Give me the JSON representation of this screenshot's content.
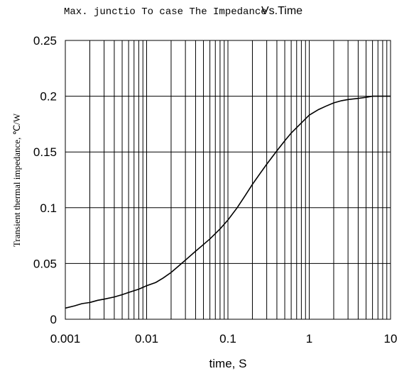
{
  "chart_data": {
    "type": "line",
    "title_main": "Max. junctio To case The Impedance",
    "title_tail": "Vs.Time",
    "xlabel": "time, S",
    "ylabel": "Transient thermal impedance, ℃/W",
    "x_scale": "log",
    "xlim": [
      0.001,
      10
    ],
    "ylim": [
      0,
      0.25
    ],
    "x_ticks": [
      0.001,
      0.01,
      0.1,
      1,
      10
    ],
    "x_tick_labels": [
      "0.001",
      "0.01",
      "0.1",
      "1",
      "10"
    ],
    "y_ticks": [
      0,
      0.05,
      0.1,
      0.15,
      0.2,
      0.25
    ],
    "y_tick_labels": [
      "0",
      "0.05",
      "0.1",
      "0.15",
      "0.2",
      "0.25"
    ],
    "grid": true,
    "series": [
      {
        "color": "#000000",
        "x": [
          0.001,
          0.0013,
          0.0016,
          0.002,
          0.0025,
          0.003,
          0.004,
          0.005,
          0.006,
          0.008,
          0.01,
          0.013,
          0.016,
          0.02,
          0.025,
          0.03,
          0.04,
          0.05,
          0.06,
          0.08,
          0.1,
          0.13,
          0.16,
          0.2,
          0.25,
          0.3,
          0.4,
          0.5,
          0.6,
          0.8,
          1,
          1.3,
          1.6,
          2,
          2.5,
          3,
          4,
          5,
          6,
          8,
          10
        ],
        "y": [
          0.01,
          0.012,
          0.014,
          0.015,
          0.017,
          0.018,
          0.02,
          0.022,
          0.024,
          0.027,
          0.03,
          0.033,
          0.037,
          0.042,
          0.048,
          0.053,
          0.061,
          0.067,
          0.072,
          0.081,
          0.089,
          0.1,
          0.11,
          0.121,
          0.131,
          0.139,
          0.151,
          0.16,
          0.167,
          0.176,
          0.183,
          0.188,
          0.191,
          0.194,
          0.196,
          0.197,
          0.198,
          0.199,
          0.2,
          0.2,
          0.2
        ]
      }
    ]
  }
}
